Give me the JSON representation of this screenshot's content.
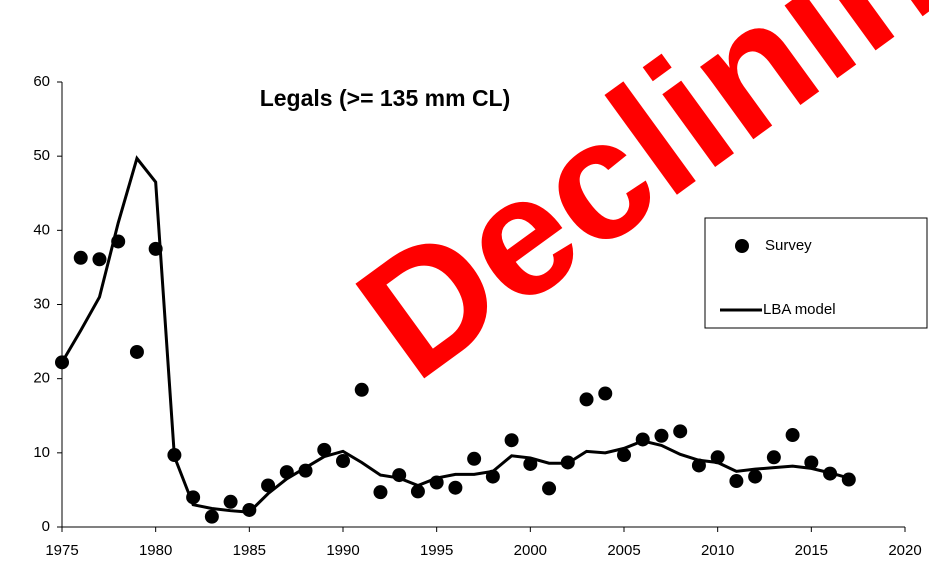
{
  "chart_data": {
    "type": "line",
    "title": "Legals (>= 135 mm CL)",
    "annotation": "Declining",
    "annotation_color": "#ff0000",
    "x": [
      1975,
      1976,
      1977,
      1978,
      1979,
      1980,
      1981,
      1982,
      1983,
      1984,
      1985,
      1986,
      1987,
      1988,
      1989,
      1990,
      1991,
      1992,
      1993,
      1994,
      1995,
      1996,
      1997,
      1998,
      1999,
      2000,
      2001,
      2002,
      2003,
      2004,
      2005,
      2006,
      2007,
      2008,
      2009,
      2010,
      2011,
      2012,
      2013,
      2014,
      2015,
      2016,
      2017
    ],
    "series": [
      {
        "name": "Survey",
        "style": "marker",
        "color": "#000000",
        "values": [
          22.2,
          36.3,
          36.1,
          38.5,
          23.6,
          37.5,
          9.7,
          4.0,
          1.4,
          3.4,
          2.3,
          5.6,
          7.4,
          7.6,
          10.4,
          8.9,
          18.5,
          4.7,
          7.0,
          4.8,
          6.0,
          5.3,
          9.2,
          6.8,
          11.7,
          8.5,
          5.2,
          8.7,
          17.2,
          18.0,
          9.7,
          11.8,
          12.3,
          12.9,
          8.3,
          9.4,
          6.2,
          6.8,
          9.4,
          12.4,
          8.7,
          7.2,
          6.4
        ]
      },
      {
        "name": "LBA model",
        "style": "line",
        "color": "#000000",
        "values": [
          22.2,
          26.5,
          31,
          41,
          49.7,
          46.5,
          9.5,
          3.0,
          2.5,
          2.2,
          2.0,
          4.5,
          6.5,
          8.0,
          9.5,
          10.2,
          8.7,
          7.0,
          6.6,
          5.6,
          6.6,
          7.1,
          7.1,
          7.5,
          9.6,
          9.3,
          8.6,
          8.6,
          10.2,
          10.0,
          10.6,
          11.6,
          11.0,
          9.8,
          9.0,
          8.7,
          7.5,
          7.8,
          8.0,
          8.2,
          7.9,
          7.3,
          6.6
        ]
      }
    ],
    "xlim": [
      1975,
      2020
    ],
    "xticks": [
      1975,
      1980,
      1985,
      1990,
      1995,
      2000,
      2005,
      2010,
      2015,
      2020
    ],
    "ylim": [
      0,
      60
    ],
    "yticks": [
      0,
      10,
      20,
      30,
      40,
      50,
      60
    ],
    "grid": false
  }
}
